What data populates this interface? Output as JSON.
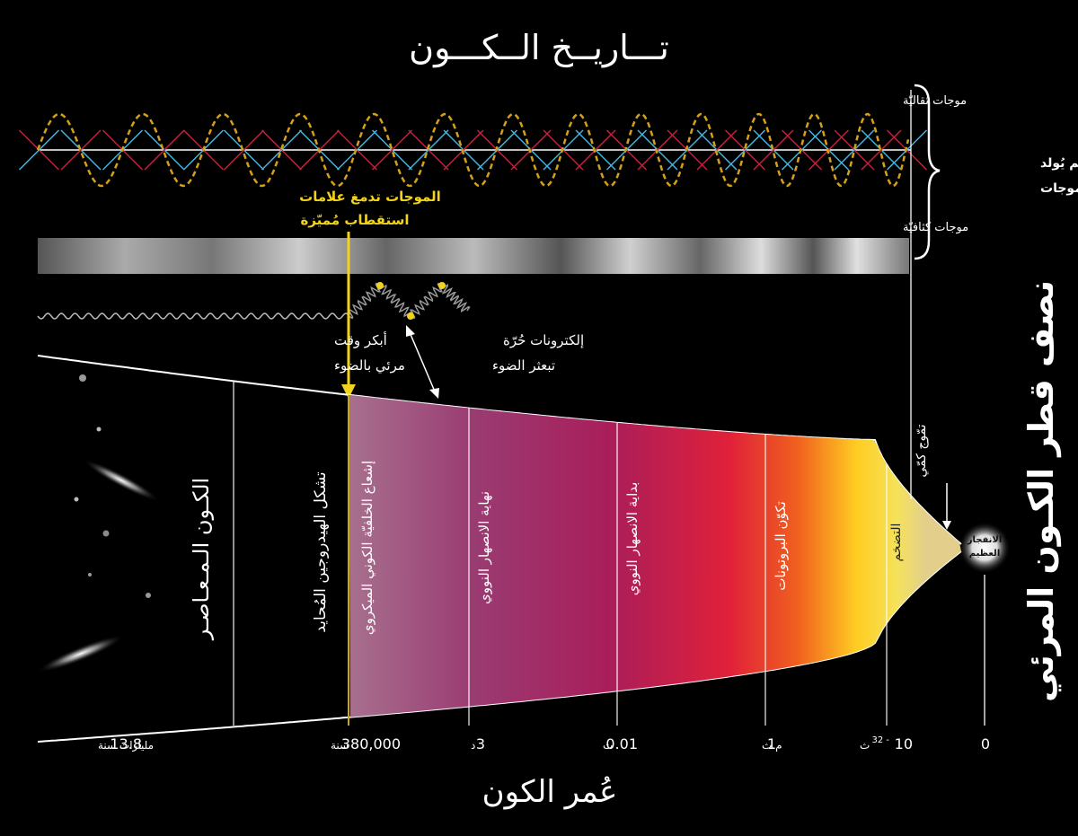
{
  "title": "تـــاريــخ الــكـــون",
  "axis_title": "عُمر الكون",
  "side_title": "نصف قطر الكـون المرئي",
  "waves": {
    "tensor_label": "موجات ثقاليّة",
    "density_label": "موجات كثافيّة",
    "inflation_note_line1": "التضخم يُولد",
    "inflation_note_line2": "نوعان من الموجات",
    "polarization_line1": "الموجات تدمغ علامات",
    "polarization_line2": "استقطاب مُميّزة",
    "colors": {
      "tensor_wave": "#d4a017",
      "cross_red": "#c81e3c",
      "cross_blue": "#3fb6e0",
      "polarization_text": "#f2d31b"
    }
  },
  "light": {
    "earliest_line1": "أبكر وقت",
    "earliest_line2": "مرئي بالضوء",
    "electrons_line1": "إلكترونات حُرّة",
    "electrons_line2": "تبعثر الضوء"
  },
  "eras": {
    "modern": "الكـون الـمـعـاصـر",
    "neutral_hydrogen": "تشكل الهيدروجين المُحايد",
    "cmb": "إشعاع الخلفيّة الكوني الميكروي",
    "nucleosynthesis_end": "نهاية الانصهار النووي",
    "nucleosynthesis_start": "بداية الانصهار النووي",
    "protons": "تكوّن البروتونات",
    "inflation": "التضخم",
    "quantum_fluctuations": "تمّوج كمّي",
    "big_bang_line1": "الانفجار",
    "big_bang_line2": "العظيم"
  },
  "ticks": [
    {
      "value": "13.8",
      "unit": "مليارات سنة"
    },
    {
      "value": "380,000",
      "unit": "سنة"
    },
    {
      "value": "3",
      "unit": "د"
    },
    {
      "value": "0.01",
      "unit": "ث"
    },
    {
      "value": "1",
      "unit": "م.ث"
    },
    {
      "value": "10",
      "exp": "32 -",
      "unit": "ث"
    },
    {
      "value": "0",
      "unit": ""
    }
  ]
}
